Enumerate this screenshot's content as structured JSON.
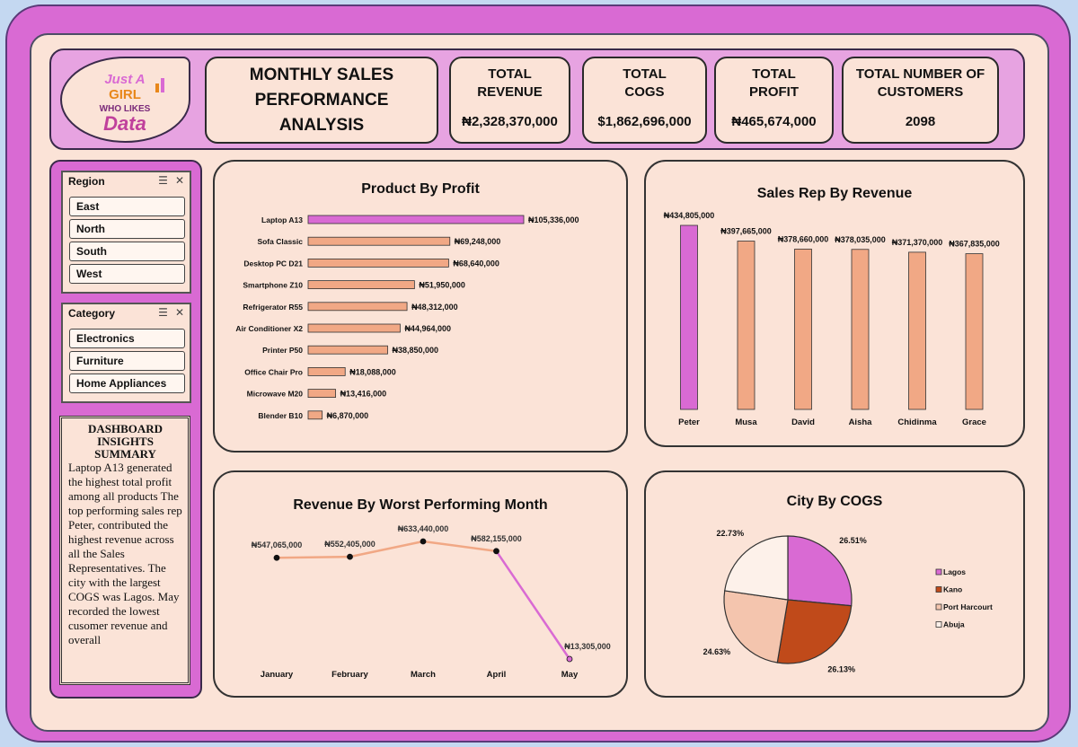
{
  "header": {
    "title_line1": "MONTHLY SALES",
    "title_line2": "PERFORMANCE",
    "title_line3": "ANALYSIS",
    "logo": {
      "line1": "Just A",
      "line2": "GIRL",
      "line3": "WHO LIKES",
      "line4": "Data"
    }
  },
  "kpis": [
    {
      "label_line1": "TOTAL",
      "label_line2": "REVENUE",
      "value": "₦2,328,370,000"
    },
    {
      "label_line1": "TOTAL",
      "label_line2": "COGS",
      "value": "$1,862,696,000"
    },
    {
      "label_line1": "TOTAL",
      "label_line2": "PROFIT",
      "value": "₦465,674,000"
    },
    {
      "label_line1": "TOTAL NUMBER OF",
      "label_line2": "CUSTOMERS",
      "value": "2098"
    }
  ],
  "slicers": {
    "region": {
      "title": "Region",
      "items": [
        "East",
        "North",
        "South",
        "West"
      ]
    },
    "category": {
      "title": "Category",
      "items": [
        "Electronics",
        "Furniture",
        "Home Appliances"
      ]
    }
  },
  "insights": {
    "heading_line1": "DASHBOARD",
    "heading_line2": "INSIGHTS",
    "heading_line3": "SUMMARY",
    "body": "Laptop A13 generated the highest total profit among all products The top performing sales rep Peter, contributed the highest revenue across all the Sales Representatives. The city with the largest COGS was Lagos. May recorded the lowest cusomer revenue and overall"
  },
  "colors": {
    "highlight": "#d96ad3",
    "bar": "#f1a885",
    "bar_stroke": "#333333",
    "kano": "#c04a1a",
    "port_harcourt": "#f4c5ae",
    "abuja": "#fdf1ea"
  },
  "chart_data": [
    {
      "type": "bar",
      "orientation": "horizontal",
      "title": "Product By Profit",
      "categories": [
        "Laptop A13",
        "Sofa Classic",
        "Desktop PC D21",
        "Smartphone Z10",
        "Refrigerator R55",
        "Air Conditioner X2",
        "Printer P50",
        "Office Chair Pro",
        "Microwave M20",
        "Blender B10"
      ],
      "values": [
        105336000,
        69248000,
        68640000,
        51950000,
        48312000,
        44964000,
        38850000,
        18088000,
        13416000,
        6870000
      ],
      "labels": [
        "₦105,336,000",
        "₦69,248,000",
        "₦68,640,000",
        "₦51,950,000",
        "₦48,312,000",
        "₦44,964,000",
        "₦38,850,000",
        "₦18,088,000",
        "₦13,416,000",
        "₦6,870,000"
      ],
      "highlight_index": 0
    },
    {
      "type": "bar",
      "orientation": "vertical",
      "title": "Sales Rep By Revenue",
      "categories": [
        "Peter",
        "Musa",
        "David",
        "Aisha",
        "Chidinma",
        "Grace"
      ],
      "values": [
        434805000,
        397665000,
        378660000,
        378035000,
        371370000,
        367835000
      ],
      "labels": [
        "₦434,805,000",
        "₦397,665,000",
        "₦378,660,000",
        "₦378,035,000",
        "₦371,370,000",
        "₦367,835,000"
      ],
      "highlight_index": 0
    },
    {
      "type": "line",
      "title": "Revenue By Worst Performing Month",
      "categories": [
        "January",
        "February",
        "March",
        "April",
        "May"
      ],
      "values": [
        547065000,
        552405000,
        633440000,
        582155000,
        13305000
      ],
      "labels": [
        "₦547,065,000",
        "₦552,405,000",
        "₦633,440,000",
        "₦582,155,000",
        "₦13,305,000"
      ],
      "highlight_index": 4
    },
    {
      "type": "pie",
      "title": "City By COGS",
      "categories": [
        "Lagos",
        "Kano",
        "Port Harcourt",
        "Abuja"
      ],
      "values": [
        26.51,
        26.13,
        24.63,
        22.73
      ],
      "labels": [
        "26.51%",
        "26.13%",
        "24.63%",
        "22.73%"
      ],
      "legend": "right"
    }
  ]
}
